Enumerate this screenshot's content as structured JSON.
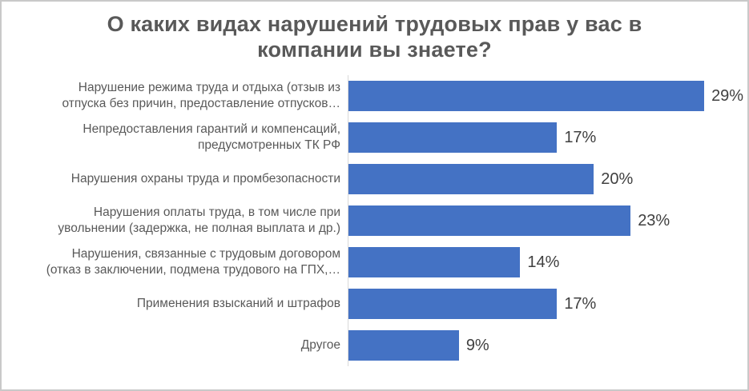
{
  "chart_data": {
    "type": "bar",
    "orientation": "horizontal",
    "title": "О каких видах нарушений трудовых прав у вас в компании вы знаете?",
    "categories": [
      "Нарушение режима труда и отдыха (отзыв из отпуска без причин, предоставление отпусков…",
      "Непредоставления гарантий и компенсаций, предусмотренных ТК РФ",
      "Нарушения охраны труда и промбезопасности",
      "Нарушения оплаты труда, в том числе при увольнении (задержка, не полная выплата и др.)",
      "Нарушения, связанные с трудовым договором (отказ в заключении, подмена трудового на ГПХ,…",
      "Применения взысканий и штрафов",
      "Другое"
    ],
    "category_lines": [
      [
        "Нарушение режима труда и отдыха (отзыв из",
        "отпуска без причин, предоставление отпусков…"
      ],
      [
        "Непредоставления гарантий и компенсаций,",
        "предусмотренных ТК РФ"
      ],
      [
        "Нарушения охраны труда и промбезопасности"
      ],
      [
        "Нарушения оплаты труда, в том числе при",
        "увольнении (задержка, не полная выплата и др.)"
      ],
      [
        "Нарушения, связанные с трудовым договором",
        "(отказ в заключении, подмена трудового на ГПХ,…"
      ],
      [
        "Применения взысканий и штрафов"
      ],
      [
        "Другое"
      ]
    ],
    "values": [
      29,
      17,
      20,
      23,
      14,
      17,
      9
    ],
    "value_labels": [
      "29%",
      "17%",
      "20%",
      "23%",
      "14%",
      "17%",
      "9%"
    ],
    "xlabel": "",
    "ylabel": "",
    "xlim": [
      0,
      32
    ],
    "grid": "off",
    "legend": "none",
    "bar_color": "#4472C4",
    "axis_line_color": "#D9D9D9",
    "title_color": "#595959",
    "category_label_color": "#595959",
    "value_label_color": "#404040"
  }
}
